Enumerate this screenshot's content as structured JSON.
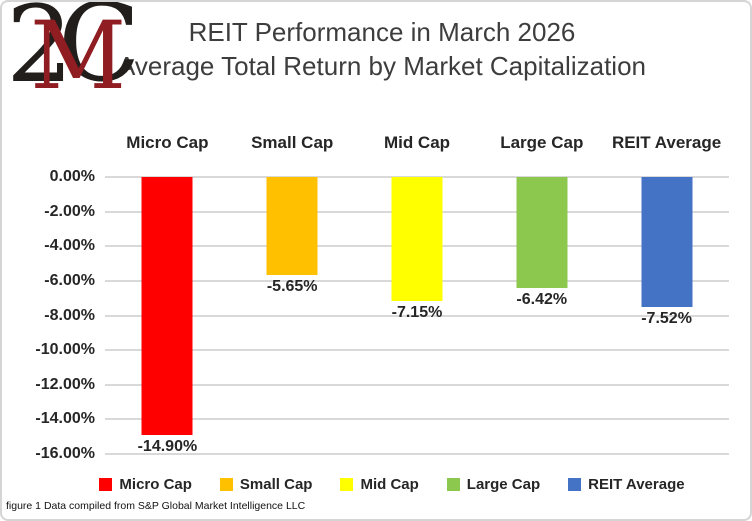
{
  "logo": {
    "char_left": "2",
    "char_middle": "M",
    "char_right": "C",
    "black": "#221E1B",
    "red": "#8F1D21"
  },
  "title": {
    "line1": "REIT Performance in March 2026",
    "line2": "Average Total Return by Market Capitalization"
  },
  "chart_data": {
    "type": "bar",
    "title": "REIT Performance in March 2026",
    "subtitle": "Average Total Return by Market Capitalization",
    "categories": [
      "Micro Cap",
      "Small Cap",
      "Mid Cap",
      "Large Cap",
      "REIT Average"
    ],
    "values": [
      -14.9,
      -5.65,
      -7.15,
      -6.42,
      -7.52
    ],
    "value_labels": [
      "-14.90%",
      "-5.65%",
      "-7.15%",
      "-6.42%",
      "-7.52%"
    ],
    "bar_colors": [
      "#FF0000",
      "#FFC000",
      "#FFFF00",
      "#8DC84E",
      "#4472C4"
    ],
    "xlabel": "",
    "ylabel": "",
    "ylim": [
      -16,
      0
    ],
    "y_tick_labels": [
      "0.00%",
      "-2.00%",
      "-4.00%",
      "-6.00%",
      "-8.00%",
      "-10.00%",
      "-12.00%",
      "-14.00%",
      "-16.00%"
    ],
    "grid": true,
    "legend_position": "bottom",
    "legend": [
      {
        "label": "Micro Cap",
        "color": "#FF0000"
      },
      {
        "label": "Small Cap",
        "color": "#FFC000"
      },
      {
        "label": "Mid Cap",
        "color": "#FFFF00"
      },
      {
        "label": "Large Cap",
        "color": "#8DC84E"
      },
      {
        "label": "REIT Average",
        "color": "#4472C4"
      }
    ]
  },
  "footer": {
    "caption": "figure 1 Data compiled from S&P Global Market Intelligence LLC"
  },
  "colors": {
    "gridline": "#D9D9D9",
    "title_text": "#3D3D3D",
    "axis_text": "#262626",
    "frame_border": "#D5D5D5",
    "background": "#FFFFFF"
  }
}
